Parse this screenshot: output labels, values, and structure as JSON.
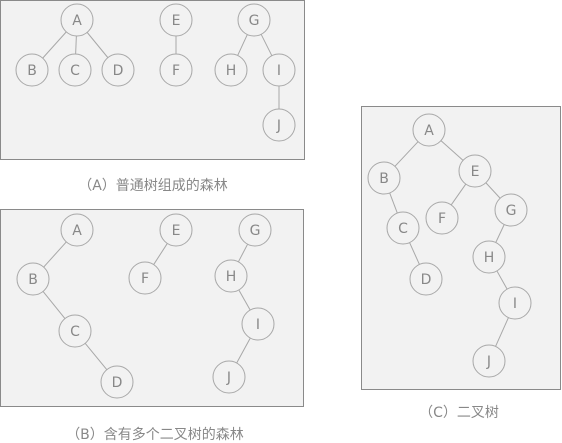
{
  "captions": {
    "a": "（A）普通树组成的森林",
    "b": "（B）含有多个二叉树的森林",
    "c": "（C）二叉树"
  },
  "colors": {
    "panel_fill": "#f2f2f2",
    "panel_stroke": "#8a8a8a",
    "node_fill": "#f2f2f2",
    "node_stroke": "#a8a8a8",
    "edge": "#a8a8a8",
    "text": "#888888"
  },
  "diagrams": [
    {
      "id": "a",
      "description_in_caption": "captions.a",
      "nodes": [
        "A",
        "B",
        "C",
        "D",
        "E",
        "F",
        "G",
        "H",
        "I",
        "J"
      ],
      "edges": [
        [
          "A",
          "B"
        ],
        [
          "A",
          "C"
        ],
        [
          "A",
          "D"
        ],
        [
          "E",
          "F"
        ],
        [
          "G",
          "H"
        ],
        [
          "G",
          "I"
        ],
        [
          "I",
          "J"
        ]
      ]
    },
    {
      "id": "b",
      "description_in_caption": "captions.b",
      "nodes": [
        "A",
        "B",
        "C",
        "D",
        "E",
        "F",
        "G",
        "H",
        "I",
        "J"
      ],
      "edges": [
        [
          "A",
          "B"
        ],
        [
          "B",
          "C"
        ],
        [
          "C",
          "D"
        ],
        [
          "E",
          "F"
        ],
        [
          "G",
          "H"
        ],
        [
          "H",
          "I"
        ],
        [
          "I",
          "J"
        ]
      ]
    },
    {
      "id": "c",
      "description_in_caption": "captions.c",
      "nodes": [
        "A",
        "B",
        "C",
        "D",
        "E",
        "F",
        "G",
        "H",
        "I",
        "J"
      ],
      "edges": [
        [
          "A",
          "B"
        ],
        [
          "A",
          "E"
        ],
        [
          "B",
          "C"
        ],
        [
          "C",
          "D"
        ],
        [
          "E",
          "F"
        ],
        [
          "E",
          "G"
        ],
        [
          "G",
          "H"
        ],
        [
          "H",
          "I"
        ],
        [
          "I",
          "J"
        ]
      ]
    }
  ]
}
